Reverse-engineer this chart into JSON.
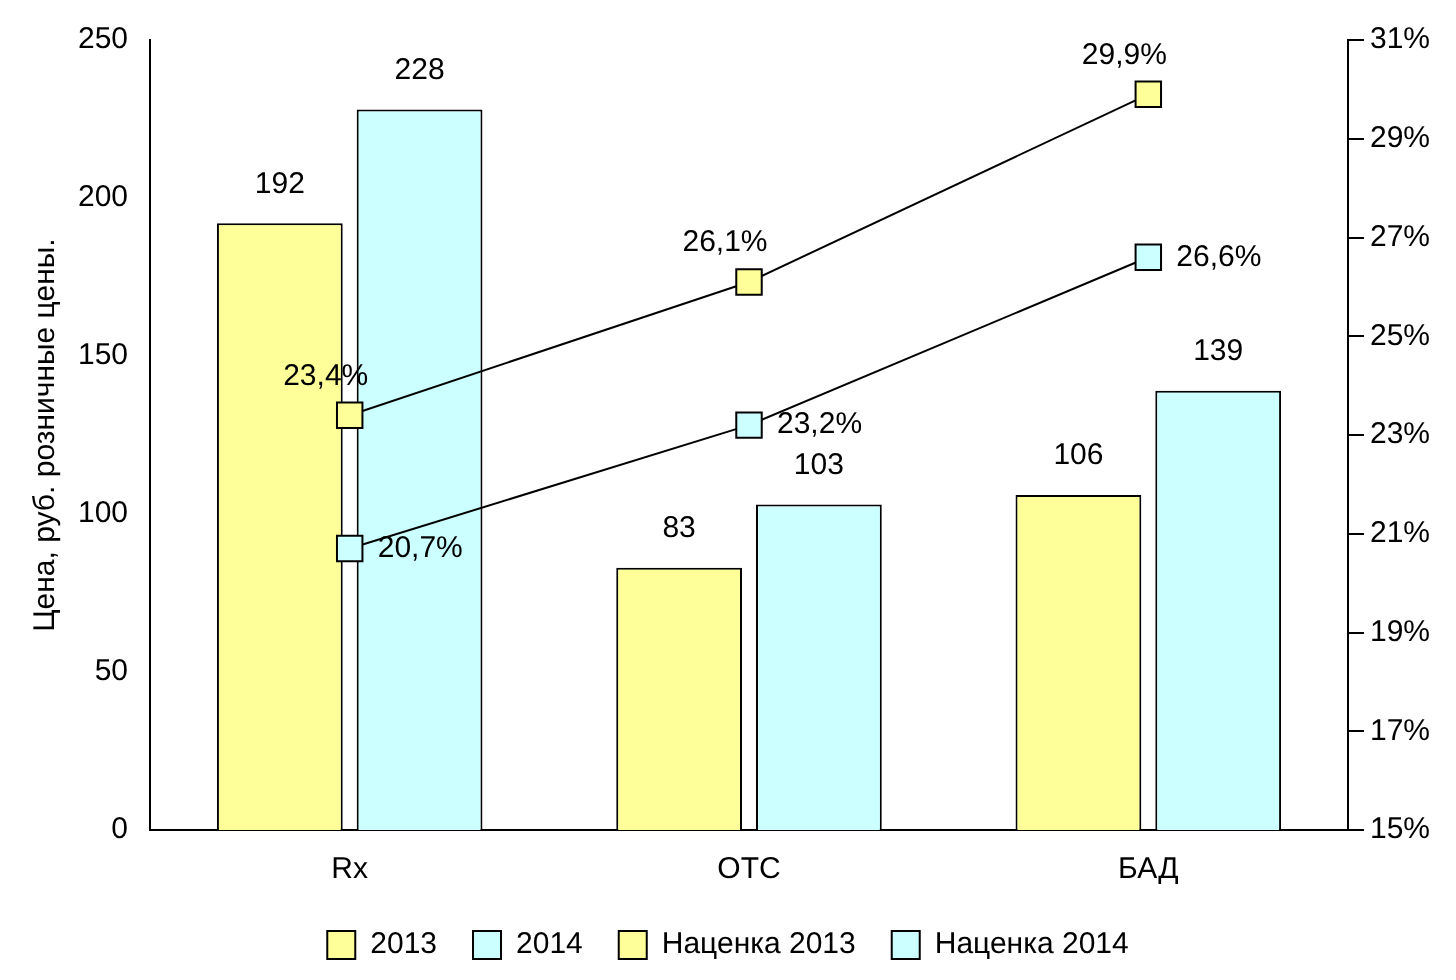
{
  "chart_data": {
    "type": "bar",
    "categories": [
      "Rx",
      "OTC",
      "БАД"
    ],
    "ylabel": "Цена, руб. розничные цены.",
    "ylim": [
      0,
      250
    ],
    "yticks": [
      0,
      50,
      100,
      150,
      200,
      250
    ],
    "y2lim": [
      15,
      31
    ],
    "y2ticks": [
      {
        "value": 15,
        "label": "15%"
      },
      {
        "value": 17,
        "label": "17%"
      },
      {
        "value": 19,
        "label": "19%"
      },
      {
        "value": 21,
        "label": "21%"
      },
      {
        "value": 23,
        "label": "23%"
      },
      {
        "value": 25,
        "label": "25%"
      },
      {
        "value": 27,
        "label": "27%"
      },
      {
        "value": 29,
        "label": "29%"
      },
      {
        "value": 31,
        "label": "31%"
      }
    ],
    "grid": false,
    "legend": "bottom",
    "marker": "square",
    "series": [
      {
        "name": "2013",
        "color": "#ffff99",
        "values": [
          192,
          83,
          106
        ],
        "value_labels": [
          "192",
          "83",
          "106"
        ]
      },
      {
        "name": "2014",
        "color": "#ccffff",
        "values": [
          228,
          103,
          139
        ],
        "value_labels": [
          "228",
          "103",
          "139"
        ]
      },
      {
        "name": "Наценка 2013",
        "type": "line",
        "axis": "y2",
        "color": "#ffff99",
        "values": [
          23.4,
          26.1,
          29.9
        ],
        "value_labels": [
          "23,4%",
          "26,1%",
          "29,9%"
        ]
      },
      {
        "name": "Наценка 2014",
        "type": "line",
        "axis": "y2",
        "color": "#ccffff",
        "values": [
          20.7,
          23.2,
          26.6
        ],
        "value_labels": [
          "20,7%",
          "23,2%",
          "26,6%"
        ]
      }
    ]
  }
}
